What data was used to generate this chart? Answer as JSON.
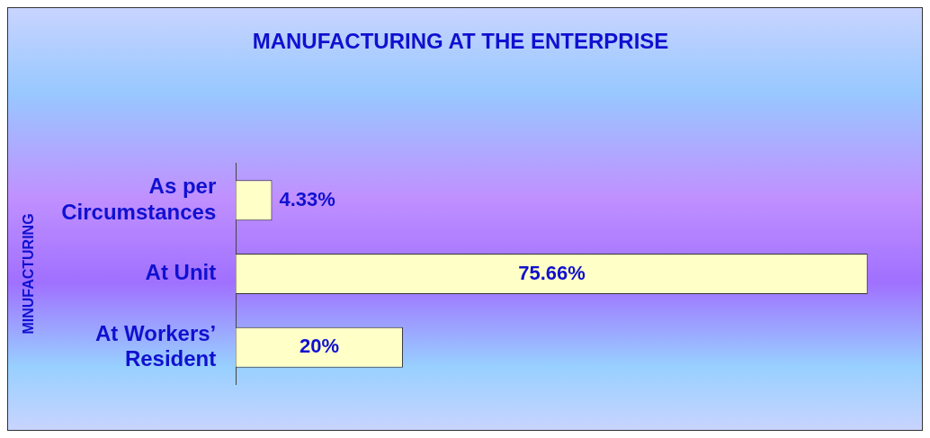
{
  "chart_data": {
    "type": "bar",
    "orientation": "horizontal",
    "title": "MANUFACTURING AT THE ENTERPRISE",
    "ylabel": "MINUFACTURING",
    "categories": [
      "As per Circumstances",
      "At Unit",
      "At Workers’ Resident"
    ],
    "values": [
      4.33,
      75.66,
      20
    ],
    "value_labels": [
      "4.33%",
      "75.66%",
      "20%"
    ],
    "color": "#ffffc8",
    "tick_labels": "y",
    "legend": false
  }
}
